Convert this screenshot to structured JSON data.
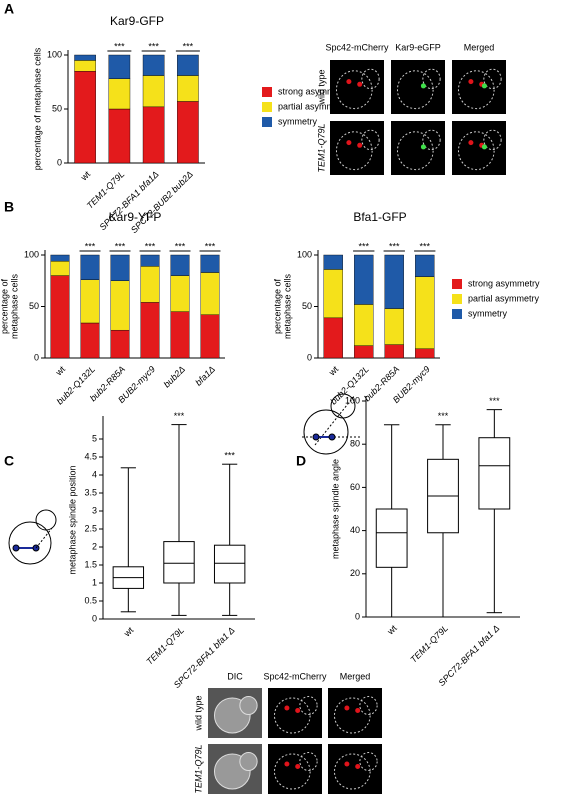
{
  "figure": {
    "panels": [
      "A",
      "B",
      "C",
      "D"
    ]
  },
  "micrographs": [
    {
      "columns": [
        {
          "label": "Spc42-mCherry",
          "color": "#e0141b"
        },
        {
          "label": "Kar9-eGFP",
          "color": "#1fae3a"
        },
        {
          "label": "Merged",
          "color": "#000000"
        }
      ],
      "rows": [
        "wild type",
        "TEM1-Q79L"
      ]
    },
    {
      "columns": [
        {
          "label": "DIC",
          "color": "#000000"
        },
        {
          "label": "Spc42-mCherry",
          "color": "#e0141b"
        },
        {
          "label": "Merged",
          "color": "#000000"
        }
      ],
      "rows": [
        "wild type",
        "TEM1-Q79L"
      ]
    }
  ],
  "chart_data": [
    {
      "type": "stacked_bar",
      "title": "Kar9-GFP",
      "ylabel": [
        "percentage of metaphase cells"
      ],
      "categories": [
        "wt",
        "TEM1-Q79L",
        "SPC72-BFA1 bfa1Δ",
        "SPC72-BUB2 bub2Δ"
      ],
      "series": [
        {
          "name": "strong asymmetry",
          "color": "#e31a1c",
          "values": [
            85,
            50,
            52,
            57
          ]
        },
        {
          "name": "partial asymmetry",
          "color": "#f5e11a",
          "values": [
            10,
            28,
            29,
            24
          ]
        },
        {
          "name": "symmetry",
          "color": "#1f5aa8",
          "values": [
            5,
            22,
            19,
            19
          ]
        }
      ],
      "annotations": [
        null,
        "***",
        "***",
        "***"
      ],
      "ylim": [
        0,
        100
      ],
      "yticks": [
        0,
        50,
        100
      ],
      "legend": "right"
    },
    {
      "type": "stacked_bar",
      "title": "Kar9-YFP",
      "ylabel": [
        "percentage of",
        "metaphase cells"
      ],
      "categories": [
        "wt",
        "bub2-Q132L",
        "bub2-R85A",
        "BUB2-myc9",
        "bub2Δ",
        "bfa1Δ"
      ],
      "series": [
        {
          "name": "strong asymmetry",
          "color": "#e31a1c",
          "values": [
            80,
            34,
            27,
            54,
            45,
            42
          ]
        },
        {
          "name": "partial asymmetry",
          "color": "#f5e11a",
          "values": [
            14,
            42,
            48,
            35,
            35,
            41
          ]
        },
        {
          "name": "symmetry",
          "color": "#1f5aa8",
          "values": [
            6,
            24,
            25,
            11,
            20,
            17
          ]
        }
      ],
      "annotations": [
        null,
        "***",
        "***",
        "***",
        "***",
        "***"
      ],
      "ylim": [
        0,
        100
      ],
      "yticks": [
        0,
        50,
        100
      ],
      "legend": null
    },
    {
      "type": "stacked_bar",
      "title": "Bfa1-GFP",
      "ylabel": [
        "percentage of",
        "metaphase cells"
      ],
      "categories": [
        "wt",
        "bub2-Q132L",
        "bub2-R85A",
        "BUB2-myc9"
      ],
      "series": [
        {
          "name": "strong asymmetry",
          "color": "#e31a1c",
          "values": [
            39,
            12,
            13,
            9
          ]
        },
        {
          "name": "partial asymmetry",
          "color": "#f5e11a",
          "values": [
            47,
            40,
            35,
            70
          ]
        },
        {
          "name": "symmetry",
          "color": "#1f5aa8",
          "values": [
            14,
            48,
            52,
            21
          ]
        }
      ],
      "annotations": [
        null,
        "***",
        "***",
        "***"
      ],
      "ylim": [
        0,
        100
      ],
      "yticks": [
        0,
        50,
        100
      ],
      "legend": "right"
    },
    {
      "type": "box",
      "ylabel": [
        "metaphase spindle position"
      ],
      "categories": [
        "wt",
        "TEM1-Q79L",
        "SPC72-BFA1 bfa1 Δ"
      ],
      "boxes": [
        {
          "min": 0.2,
          "q1": 0.85,
          "median": 1.15,
          "q3": 1.45,
          "max": 4.2
        },
        {
          "min": 0.1,
          "q1": 1.0,
          "median": 1.55,
          "q3": 2.15,
          "max": 5.4
        },
        {
          "min": 0.1,
          "q1": 1.0,
          "median": 1.55,
          "q3": 2.05,
          "max": 4.3
        }
      ],
      "annotations": [
        null,
        "***",
        "***"
      ],
      "ylim": [
        0,
        5.5
      ],
      "yticks": [
        0,
        0.5,
        1,
        1.5,
        2,
        2.5,
        3,
        3.5,
        4,
        4.5,
        5
      ]
    },
    {
      "type": "box",
      "ylabel": [
        "metaphase spindle angle"
      ],
      "categories": [
        "wt",
        "TEM1-Q79L",
        "SPC72-BFA1 bfa1 Δ"
      ],
      "boxes": [
        {
          "min": 0,
          "q1": 23,
          "median": 39,
          "q3": 50,
          "max": 89
        },
        {
          "min": 0,
          "q1": 39,
          "median": 56,
          "q3": 73,
          "max": 89
        },
        {
          "min": 2,
          "q1": 50,
          "median": 70,
          "q3": 83,
          "max": 96
        }
      ],
      "annotations": [
        null,
        "***",
        "***"
      ],
      "ylim": [
        0,
        100
      ],
      "yticks": [
        0,
        20,
        40,
        60,
        80,
        100
      ]
    }
  ]
}
